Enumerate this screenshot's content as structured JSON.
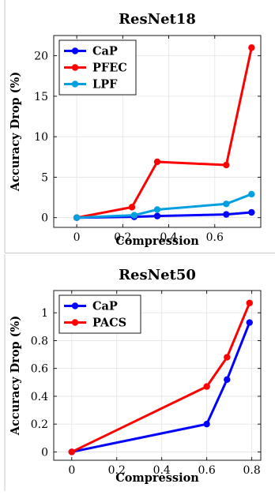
{
  "chart_data": [
    {
      "type": "line",
      "title": "ResNet18",
      "xlabel": "Compression",
      "ylabel": "Accuracy Drop (%)",
      "xlim": [
        -0.1,
        0.8
      ],
      "ylim": [
        -1.2,
        22.5
      ],
      "xticks": [
        0,
        0.2,
        0.4,
        0.6
      ],
      "xtick_labels": [
        "0",
        "0.2",
        "0.4",
        "0.6"
      ],
      "yticks": [
        0,
        5,
        10,
        15,
        20
      ],
      "ytick_labels": [
        "0",
        "5",
        "10",
        "15",
        "20"
      ],
      "grid": true,
      "legend_position": "top-left",
      "series": [
        {
          "name": "CaP",
          "color": "#0000ff",
          "x": [
            0,
            0.25,
            0.35,
            0.65,
            0.76
          ],
          "y": [
            0,
            0.1,
            0.2,
            0.4,
            0.65
          ]
        },
        {
          "name": "PFEC",
          "color": "#ff0000",
          "x": [
            0,
            0.24,
            0.35,
            0.65,
            0.76
          ],
          "y": [
            0,
            1.3,
            6.9,
            6.5,
            21.0
          ]
        },
        {
          "name": "LPF",
          "color": "#00a0e0",
          "x": [
            0,
            0.25,
            0.35,
            0.65,
            0.76
          ],
          "y": [
            0,
            0.3,
            1.0,
            1.7,
            2.9
          ]
        }
      ]
    },
    {
      "type": "line",
      "title": "ResNet50",
      "xlabel": "Compression",
      "ylabel": "Accuracy Drop (%)",
      "xlim": [
        -0.08,
        0.84
      ],
      "ylim": [
        -0.06,
        1.16
      ],
      "xticks": [
        0,
        0.2,
        0.4,
        0.6,
        0.8
      ],
      "xtick_labels": [
        "0",
        "0.2",
        "0.4",
        "0.6",
        "0.8"
      ],
      "yticks": [
        0,
        0.2,
        0.4,
        0.6,
        0.8,
        1
      ],
      "ytick_labels": [
        "0",
        "0.2",
        "0.4",
        "0.6",
        "0.8",
        "1"
      ],
      "grid": true,
      "legend_position": "top-left",
      "series": [
        {
          "name": "CaP",
          "color": "#0000ff",
          "x": [
            0,
            0.6,
            0.69,
            0.79
          ],
          "y": [
            0,
            0.2,
            0.52,
            0.93
          ]
        },
        {
          "name": "PACS",
          "color": "#ff0000",
          "x": [
            0,
            0.6,
            0.69,
            0.79
          ],
          "y": [
            0,
            0.47,
            0.68,
            1.07
          ]
        }
      ]
    }
  ]
}
